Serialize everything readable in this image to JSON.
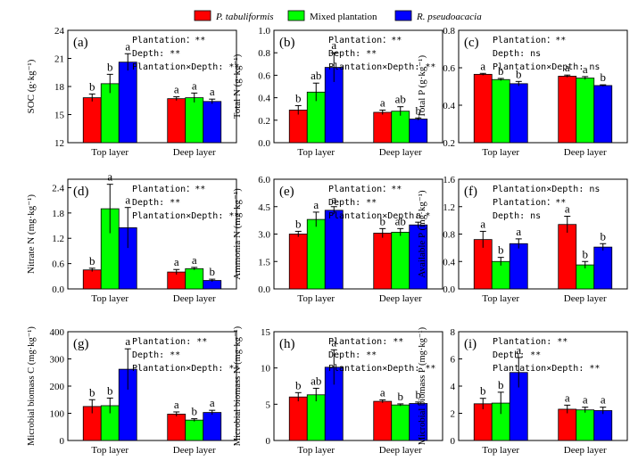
{
  "legend": {
    "placement": "top-center",
    "items": [
      {
        "label": "P. tabuliformis",
        "color": "#ff0000",
        "italic": true
      },
      {
        "label": "Mixed plantation",
        "color": "#00ff00",
        "italic": false
      },
      {
        "label": "R. pseudoacacia",
        "color": "#0000ff",
        "italic": true
      }
    ]
  },
  "chart_data": [
    {
      "type": "bar",
      "panel": "(a)",
      "ylabel": "SOC (g·kg⁻¹)",
      "ylim": [
        12,
        24
      ],
      "yticks": [
        "12",
        "15",
        "18",
        "21",
        "24"
      ],
      "categories": [
        "Top layer",
        "Deep layer"
      ],
      "series": [
        {
          "name": "P. tabuliformis",
          "values": [
            16.8,
            16.7
          ],
          "errors": [
            0.4,
            0.2
          ],
          "letters": [
            "b",
            "a"
          ]
        },
        {
          "name": "Mixed plantation",
          "values": [
            18.3,
            16.8
          ],
          "errors": [
            1.0,
            0.5
          ],
          "letters": [
            "b",
            "a"
          ]
        },
        {
          "name": "R. pseudoacacia",
          "values": [
            20.6,
            16.4
          ],
          "errors": [
            0.9,
            0.25
          ],
          "letters": [
            "a",
            "a"
          ]
        }
      ],
      "annotations": [
        "Plantation：**",
        "Depth: **",
        "Plantation×Depth: **"
      ]
    },
    {
      "type": "bar",
      "panel": "(b)",
      "ylabel": "Total N (g·kg⁻¹)",
      "ylim": [
        0.0,
        1.0
      ],
      "yticks": [
        "0.0",
        "0.2",
        "0.4",
        "0.6",
        "0.8",
        "1.0"
      ],
      "categories": [
        "Top layer",
        "Deep layer"
      ],
      "series": [
        {
          "name": "P. tabuliformis",
          "values": [
            0.29,
            0.27
          ],
          "errors": [
            0.04,
            0.02
          ],
          "letters": [
            "b",
            "a"
          ]
        },
        {
          "name": "Mixed plantation",
          "values": [
            0.45,
            0.28
          ],
          "errors": [
            0.08,
            0.04
          ],
          "letters": [
            "ab",
            "ab"
          ]
        },
        {
          "name": "R. pseudoacacia",
          "values": [
            0.67,
            0.21
          ],
          "errors": [
            0.13,
            0.01
          ],
          "letters": [
            "a",
            "b"
          ]
        }
      ],
      "annotations": [
        "Plantation：**",
        "Depth: **",
        "Plantation×Depth: **"
      ]
    },
    {
      "type": "bar",
      "panel": "(c)",
      "ylabel": "Total P (g·kg⁻¹)",
      "ylim": [
        0.2,
        0.8
      ],
      "yticks": [
        "0.2",
        "0.4",
        "0.6",
        "0.8"
      ],
      "categories": [
        "Top layer",
        "Deep layer"
      ],
      "series": [
        {
          "name": "P. tabuliformis",
          "values": [
            0.565,
            0.555
          ],
          "errors": [
            0.005,
            0.006
          ],
          "letters": [
            "a",
            "a"
          ]
        },
        {
          "name": "Mixed plantation",
          "values": [
            0.537,
            0.545
          ],
          "errors": [
            0.006,
            0.008
          ],
          "letters": [
            "b",
            "a"
          ]
        },
        {
          "name": "R. pseudoacacia",
          "values": [
            0.515,
            0.505
          ],
          "errors": [
            0.012,
            0.004
          ],
          "letters": [
            "b",
            "b"
          ]
        }
      ],
      "annotations": [
        "Plantation：**",
        "Depth: ns",
        "Plantation×Depth: ns"
      ]
    },
    {
      "type": "bar",
      "panel": "(d)",
      "ylabel": "Nitrate N (mg·kg⁻¹)",
      "ylim": [
        0.0,
        2.6
      ],
      "yticks": [
        "0.0",
        "0.6",
        "1.2",
        "1.8",
        "2.4"
      ],
      "categories": [
        "Top layer",
        "Deep layer"
      ],
      "series": [
        {
          "name": "P. tabuliformis",
          "values": [
            0.45,
            0.4
          ],
          "errors": [
            0.04,
            0.06
          ],
          "letters": [
            "b",
            "a"
          ]
        },
        {
          "name": "Mixed plantation",
          "values": [
            1.9,
            0.48
          ],
          "errors": [
            0.58,
            0.03
          ],
          "letters": [
            "a",
            "a"
          ]
        },
        {
          "name": "R. pseudoacacia",
          "values": [
            1.45,
            0.2
          ],
          "errors": [
            0.48,
            0.03
          ],
          "letters": [
            "a",
            "b"
          ]
        }
      ],
      "annotations": [
        "Plantation：**",
        "Depth: **",
        "Plantation×Depth: **"
      ]
    },
    {
      "type": "bar",
      "panel": "(e)",
      "ylabel": "Ammonia N (mg·kg⁻¹)",
      "ylim": [
        0.0,
        6.0
      ],
      "yticks": [
        "0.0",
        "1.5",
        "3.0",
        "4.5",
        "6.0"
      ],
      "categories": [
        "Top layer",
        "Deep layer"
      ],
      "series": [
        {
          "name": "P. tabuliformis",
          "values": [
            3.0,
            3.05
          ],
          "errors": [
            0.15,
            0.25
          ],
          "letters": [
            "b",
            "b"
          ]
        },
        {
          "name": "Mixed plantation",
          "values": [
            3.8,
            3.1
          ],
          "errors": [
            0.4,
            0.2
          ],
          "letters": [
            "a",
            "ab"
          ]
        },
        {
          "name": "R. pseudoacacia",
          "values": [
            4.3,
            3.5
          ],
          "errors": [
            0.2,
            0.15
          ],
          "letters": [
            "a",
            "a"
          ]
        }
      ],
      "annotations": [
        "Plantation：**",
        "Depth: **",
        "Plantation×Depth: *"
      ]
    },
    {
      "type": "bar",
      "panel": "(f)",
      "ylabel": "Available P (mg·kg⁻¹)",
      "ylim": [
        0.0,
        1.6
      ],
      "yticks": [
        "0.0",
        "0.4",
        "0.8",
        "1.2",
        "1.6"
      ],
      "categories": [
        "Top layer",
        "Deep layer"
      ],
      "series": [
        {
          "name": "P. tabuliformis",
          "values": [
            0.72,
            0.94
          ],
          "errors": [
            0.12,
            0.12
          ],
          "letters": [
            "a",
            "a"
          ]
        },
        {
          "name": "Mixed plantation",
          "values": [
            0.4,
            0.35
          ],
          "errors": [
            0.06,
            0.05
          ],
          "letters": [
            "b",
            "b"
          ]
        },
        {
          "name": "R. pseudoacacia",
          "values": [
            0.66,
            0.61
          ],
          "errors": [
            0.07,
            0.05
          ],
          "letters": [
            "a",
            "b"
          ]
        }
      ],
      "annotations": [
        "Plantation×Depth: ns",
        "Plantation：**",
        "Depth: ns"
      ]
    },
    {
      "type": "bar",
      "panel": "(g)",
      "ylabel": "Microbial biomass C (mg·kg⁻¹)",
      "ylim": [
        0,
        400
      ],
      "yticks": [
        "0",
        "100",
        "200",
        "300",
        "400"
      ],
      "categories": [
        "Top layer",
        "Deep layer"
      ],
      "series": [
        {
          "name": "P. tabuliformis",
          "values": [
            125,
            97
          ],
          "errors": [
            25,
            8
          ],
          "letters": [
            "b",
            "a"
          ]
        },
        {
          "name": "Mixed plantation",
          "values": [
            128,
            75
          ],
          "errors": [
            28,
            5
          ],
          "letters": [
            "b",
            "b"
          ]
        },
        {
          "name": "R. pseudoacacia",
          "values": [
            262,
            103
          ],
          "errors": [
            75,
            8
          ],
          "letters": [
            "a",
            "a"
          ]
        }
      ],
      "annotations": [
        "Plantation: **",
        "Depth: **",
        "Plantation×Depth: **"
      ]
    },
    {
      "type": "bar",
      "panel": "(h)",
      "ylabel": "Microbial biomass N (mg·kg⁻¹)",
      "ylim": [
        0,
        15
      ],
      "yticks": [
        "0",
        "5",
        "10",
        "15"
      ],
      "categories": [
        "Top layer",
        "Deep layer"
      ],
      "series": [
        {
          "name": "P. tabuliformis",
          "values": [
            6.0,
            5.4
          ],
          "errors": [
            0.6,
            0.2
          ],
          "letters": [
            "b",
            "a"
          ]
        },
        {
          "name": "Mixed plantation",
          "values": [
            6.3,
            4.9
          ],
          "errors": [
            0.9,
            0.15
          ],
          "letters": [
            "ab",
            "b"
          ]
        },
        {
          "name": "R. pseudoacacia",
          "values": [
            10.1,
            5.1
          ],
          "errors": [
            2.4,
            0.2
          ],
          "letters": [
            "a",
            "b"
          ]
        }
      ],
      "annotations": [
        "Plantation: **",
        "Depth: **",
        "Plantation×Depth: **"
      ]
    },
    {
      "type": "bar",
      "panel": "(i)",
      "ylabel": "Microbial biomass P (mg·kg⁻¹)",
      "ylim": [
        0,
        8
      ],
      "yticks": [
        "0",
        "2",
        "4",
        "6",
        "8"
      ],
      "categories": [
        "Top layer",
        "Deep layer"
      ],
      "series": [
        {
          "name": "P. tabuliformis",
          "values": [
            2.7,
            2.3
          ],
          "errors": [
            0.4,
            0.3
          ],
          "letters": [
            "b",
            "a"
          ]
        },
        {
          "name": "Mixed plantation",
          "values": [
            2.75,
            2.25
          ],
          "errors": [
            0.8,
            0.2
          ],
          "letters": [
            "b",
            "a"
          ]
        },
        {
          "name": "R. pseudoacacia",
          "values": [
            5.0,
            2.2
          ],
          "errors": [
            1.1,
            0.25
          ],
          "letters": [
            "a",
            "a"
          ]
        }
      ],
      "annotations": [
        "Plantation: **",
        "Depth: **",
        "Plantation×Depth: **"
      ]
    }
  ]
}
